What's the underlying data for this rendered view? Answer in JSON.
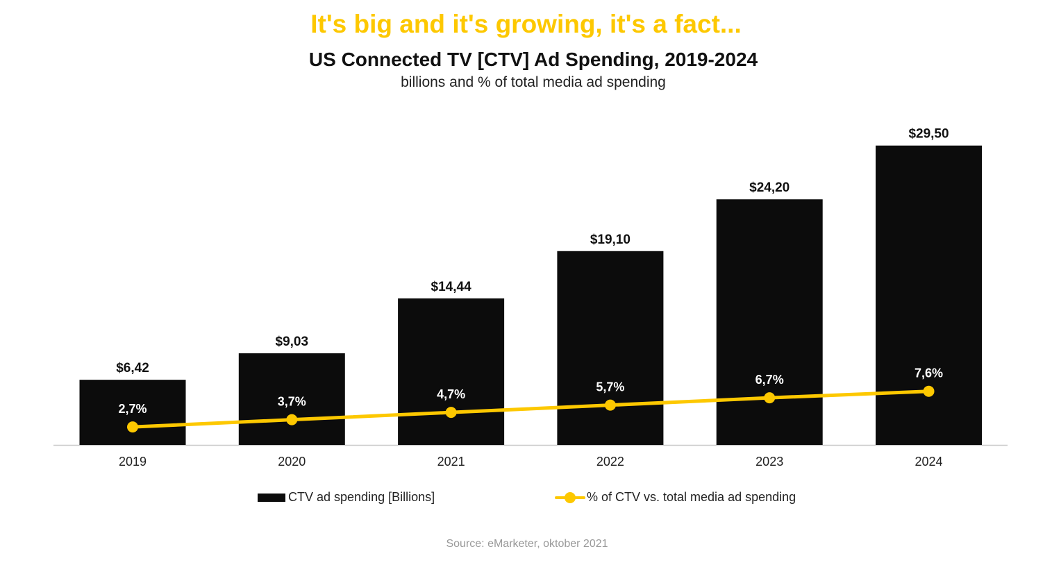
{
  "headline": "It's big and it's growing, it's a fact...",
  "source": "Source: eMarketer, oktober 2021",
  "colors": {
    "bar": "#0c0c0c",
    "line": "#FDC800",
    "headline": "#FDC800",
    "axis": "#c8c8c8"
  },
  "chart_data": {
    "type": "bar",
    "title": "US Connected TV [CTV] Ad Spending, 2019-2024",
    "subtitle": "billions and % of total media ad spending",
    "categories": [
      "2019",
      "2020",
      "2021",
      "2022",
      "2023",
      "2024"
    ],
    "series": [
      {
        "name": "CTV ad spending [Billions]",
        "type": "bar",
        "values": [
          6.42,
          9.03,
          14.44,
          19.1,
          24.2,
          29.5
        ],
        "labels": [
          "$6,42",
          "$9,03",
          "$14,44",
          "$19,10",
          "$24,20",
          "$29,50"
        ]
      },
      {
        "name": "% of CTV vs. total media ad spending",
        "type": "line",
        "values": [
          2.7,
          3.7,
          4.7,
          5.7,
          6.7,
          7.6
        ],
        "labels": [
          "2,7%",
          "3,7%",
          "4,7%",
          "5,7%",
          "6,7%",
          "7,6%"
        ]
      }
    ],
    "legend": "bottom",
    "grid": false
  }
}
